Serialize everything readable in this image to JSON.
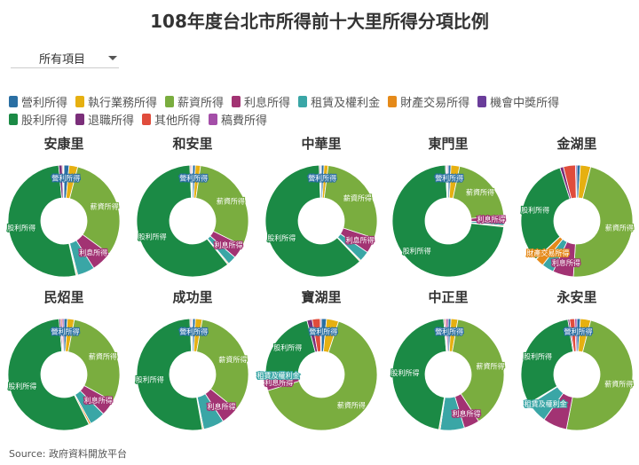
{
  "title": "108年度台北市所得前十大里所得分項比例",
  "dropdown": {
    "selected": "所有項目"
  },
  "source": "Source: 政府資料開放平台",
  "legend_rows": [
    [
      0,
      1,
      2,
      3,
      4,
      5,
      6
    ],
    [
      7,
      8,
      9,
      10
    ]
  ],
  "chart_data": {
    "type": "pie",
    "variant": "donut",
    "categories": [
      "營利所得",
      "執行業務所得",
      "薪資所得",
      "利息所得",
      "租賃及權利金",
      "財產交易所得",
      "機會中獎所得",
      "股利所得",
      "退職所得",
      "其他所得",
      "稿費所得"
    ],
    "colors": [
      "#2a6fa3",
      "#e6b011",
      "#7aad3f",
      "#a23373",
      "#3aa6a6",
      "#e58a1a",
      "#6a3d9a",
      "#1b8a45",
      "#7b2f7a",
      "#e04c3c",
      "#a44ea8"
    ],
    "legend_position": "top-left",
    "panels": [
      {
        "name": "安康里",
        "values": [
          1.5,
          2.5,
          31,
          6,
          5,
          0.3,
          0.2,
          52,
          1,
          0.3,
          0.2
        ],
        "labels": [
          {
            "index": 0,
            "text": "營利所得"
          },
          {
            "index": 2,
            "text": "薪資所得"
          },
          {
            "index": 3,
            "text": "利息所得"
          },
          {
            "index": 7,
            "text": "股利所得"
          }
        ]
      },
      {
        "name": "和安里",
        "values": [
          0.8,
          1.5,
          30,
          4,
          2.5,
          0.3,
          0.1,
          60,
          0.3,
          0.3,
          0.2
        ],
        "labels": [
          {
            "index": 0,
            "text": "營利所得"
          },
          {
            "index": 2,
            "text": "薪資所得"
          },
          {
            "index": 3,
            "text": "利息所得"
          },
          {
            "index": 7,
            "text": "股利所得"
          }
        ]
      },
      {
        "name": "中華里",
        "values": [
          0.8,
          1.2,
          28,
          4.5,
          3,
          0.3,
          0.1,
          61.5,
          0.3,
          0.2,
          0.1
        ],
        "labels": [
          {
            "index": 0,
            "text": "營利所得"
          },
          {
            "index": 2,
            "text": "薪資所得"
          },
          {
            "index": 3,
            "text": "利息所得"
          },
          {
            "index": 7,
            "text": "股利所得"
          }
        ]
      },
      {
        "name": "東門里",
        "values": [
          0.8,
          2.5,
          20,
          2,
          1,
          0.3,
          0.1,
          72.5,
          0.3,
          0.2,
          0.3
        ],
        "labels": [
          {
            "index": 0,
            "text": "營利所得"
          },
          {
            "index": 2,
            "text": "薪資所得"
          },
          {
            "index": 3,
            "text": "利息所得"
          },
          {
            "index": 7,
            "text": "股利所得"
          }
        ]
      },
      {
        "name": "金湖里",
        "values": [
          1,
          3,
          47,
          6,
          3.5,
          2.5,
          0.1,
          32,
          1,
          3.5,
          0.4
        ],
        "labels": [
          {
            "index": 2,
            "text": "薪資所得"
          },
          {
            "index": 3,
            "text": "利息所得"
          },
          {
            "index": 5,
            "text": "財產交易所得"
          },
          {
            "index": 7,
            "text": "股利所得"
          }
        ]
      },
      {
        "name": "民炤里",
        "values": [
          1,
          2,
          30,
          4.5,
          4.5,
          0.5,
          0.1,
          56,
          0.5,
          0.4,
          0.5
        ],
        "labels": [
          {
            "index": 0,
            "text": "營利所得"
          },
          {
            "index": 2,
            "text": "薪資所得"
          },
          {
            "index": 3,
            "text": "利息所得"
          },
          {
            "index": 7,
            "text": "股利所得"
          }
        ]
      },
      {
        "name": "成功里",
        "values": [
          0.8,
          2,
          33,
          5,
          6,
          0.3,
          0.1,
          52,
          0.3,
          0.3,
          0.2
        ],
        "labels": [
          {
            "index": 0,
            "text": "營利所得"
          },
          {
            "index": 2,
            "text": "薪資所得"
          },
          {
            "index": 3,
            "text": "利息所得"
          },
          {
            "index": 7,
            "text": "股利所得"
          }
        ]
      },
      {
        "name": "寶湖里",
        "values": [
          1.5,
          3.5,
          65,
          3.5,
          1.5,
          0.3,
          0.1,
          20,
          1.5,
          2.3,
          0.3
        ],
        "labels": [
          {
            "index": 0,
            "text": "營利所得"
          },
          {
            "index": 2,
            "text": "薪資所得"
          },
          {
            "index": 3,
            "text": "利息所得"
          },
          {
            "index": 4,
            "text": "租賃及權利金"
          },
          {
            "index": 7,
            "text": "股利所得"
          }
        ]
      },
      {
        "name": "中正里",
        "values": [
          0.8,
          2,
          38,
          4.5,
          7,
          0.3,
          0.1,
          46,
          0.3,
          0.4,
          0.6
        ],
        "labels": [
          {
            "index": 0,
            "text": "營利所得"
          },
          {
            "index": 2,
            "text": "薪資所得"
          },
          {
            "index": 3,
            "text": "利息所得"
          },
          {
            "index": 7,
            "text": "股利所得"
          }
        ]
      },
      {
        "name": "永安里",
        "values": [
          1,
          3,
          49,
          7,
          6,
          0.3,
          0.1,
          31,
          0.5,
          1.5,
          0.6
        ],
        "labels": [
          {
            "index": 0,
            "text": "營利所得"
          },
          {
            "index": 2,
            "text": "薪資所得"
          },
          {
            "index": 4,
            "text": "租賃及權利金"
          },
          {
            "index": 7,
            "text": "股利所得"
          }
        ]
      }
    ]
  }
}
